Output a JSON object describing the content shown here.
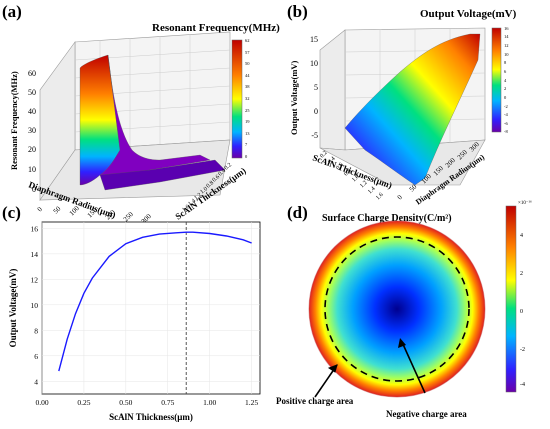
{
  "panels": {
    "a": {
      "label": "(a)",
      "title": "Resonant Frequency(MHz)"
    },
    "b": {
      "label": "(b)",
      "title": "Output Voltage(mV)"
    },
    "c": {
      "label": "(c)"
    },
    "d": {
      "label": "(d)",
      "title": "Surface Charge Density(C/m²)"
    }
  },
  "chart_data": [
    {
      "panel": "a",
      "type": "surface3d",
      "title": "Resonant Frequency(MHz)",
      "zlabel": "Resonant Frequency(MHz)",
      "xlabel": "Diaphragm Radius(μm)",
      "ylabel": "ScAlN Thickness(μm)",
      "z_ticks": [
        "0",
        "10",
        "20",
        "30",
        "40",
        "50",
        "60"
      ],
      "x_ticks": [
        "0",
        "50",
        "100",
        "150",
        "200",
        "250",
        "300"
      ],
      "y_ticks": [
        "0.2",
        "0.4",
        "0.6",
        "0.8",
        "1.0",
        "1.2",
        "1.4",
        "1.6"
      ],
      "colorbar_ticks": [
        "62",
        "57",
        "50",
        "44",
        "38",
        "32",
        "25",
        "19",
        "13",
        "7",
        "0"
      ],
      "zlim": [
        0,
        62
      ]
    },
    {
      "panel": "b",
      "type": "surface3d",
      "title": "Output Voltage(mV)",
      "zlabel": "Output Voltage(mV)",
      "xlabel": "ScAlN Thickness(μm)",
      "ylabel": "Diaphragm Radius(μm)",
      "z_ticks": [
        "-5",
        "0",
        "5",
        "10",
        "15"
      ],
      "x_ticks": [
        "0.2",
        "0.4",
        "0.6",
        "0.8",
        "1.0",
        "1.2",
        "1.4",
        "1.6"
      ],
      "y_ticks": [
        "0",
        "50",
        "100",
        "150",
        "200",
        "250",
        "300"
      ],
      "colorbar_ticks": [
        "16",
        "14",
        "12",
        "10",
        "8",
        "6",
        "4",
        "2",
        "0",
        "-2",
        "-4",
        "-6",
        "-8"
      ],
      "zlim": [
        -8,
        16
      ]
    },
    {
      "panel": "c",
      "type": "line",
      "xlabel": "ScAlN Thickness(μm)",
      "ylabel": "Output Voltage(mV)",
      "xlim": [
        0.0,
        1.3
      ],
      "ylim": [
        3,
        16.5
      ],
      "x_ticks": [
        "0.00",
        "0.25",
        "0.50",
        "0.75",
        "1.00",
        "1.25"
      ],
      "y_ticks": [
        "4",
        "6",
        "8",
        "10",
        "12",
        "14",
        "16"
      ],
      "series": [
        {
          "color": "#1a1aff",
          "x": [
            0.1,
            0.15,
            0.2,
            0.25,
            0.3,
            0.4,
            0.5,
            0.6,
            0.7,
            0.8,
            0.86,
            0.9,
            1.0,
            1.1,
            1.2,
            1.25
          ],
          "y": [
            4.8,
            7.3,
            9.3,
            10.9,
            12.1,
            13.8,
            14.8,
            15.3,
            15.55,
            15.65,
            15.7,
            15.7,
            15.6,
            15.4,
            15.1,
            14.85
          ]
        }
      ],
      "vline_x": 0.86
    },
    {
      "panel": "d",
      "type": "heatmap",
      "title": "Surface Charge Density(C/m²)",
      "colorbar_exponent": "×10⁻¹⁶",
      "colorbar_ticks": [
        "4",
        "2",
        "0",
        "-2",
        "-4"
      ],
      "annotations": [
        "Positive charge area",
        "Negative charge area"
      ]
    }
  ]
}
